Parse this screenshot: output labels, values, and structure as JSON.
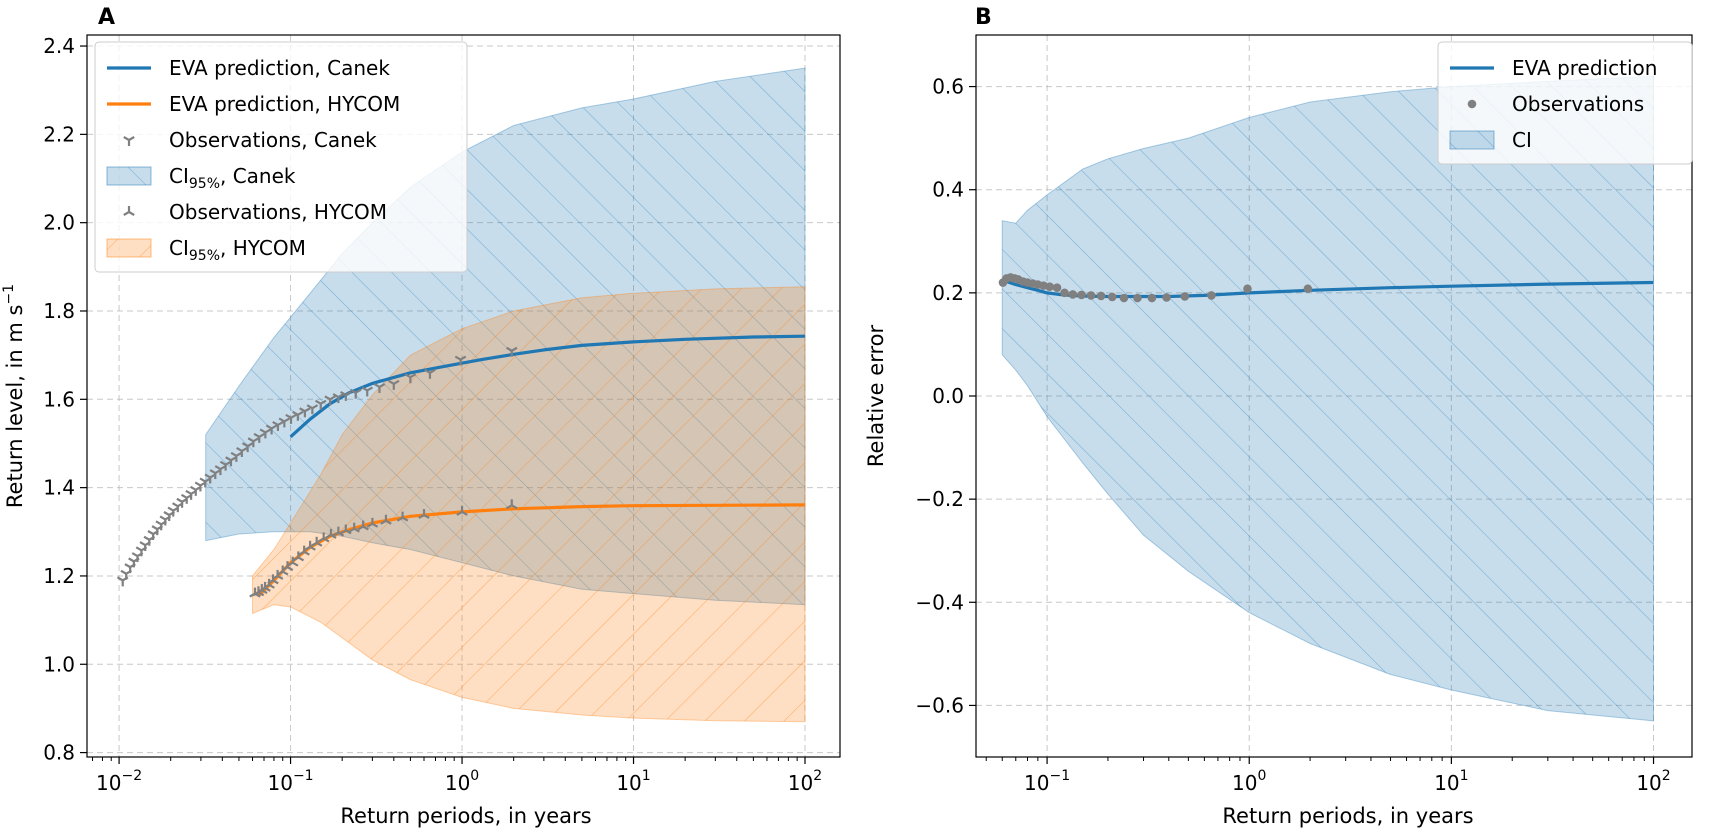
{
  "chart_data": [
    {
      "panel_label": "A",
      "type": "line",
      "xscale": "log",
      "xlim": [
        0.0065,
        160
      ],
      "ylim": [
        0.79,
        2.425
      ],
      "xlabel": "Return periods, in years",
      "ylabel": "Return level, in m s",
      "ylabel_superscript": "−1",
      "grid": true,
      "legend_location": "top-left",
      "x_tick_labels": [
        {
          "value": 0.01,
          "base": "10",
          "exp": "−2"
        },
        {
          "value": 0.1,
          "base": "10",
          "exp": "−1"
        },
        {
          "value": 1,
          "base": "10",
          "exp": "0"
        },
        {
          "value": 10,
          "base": "10",
          "exp": "1"
        },
        {
          "value": 100,
          "base": "10",
          "exp": "2"
        }
      ],
      "y_ticks": [
        0.8,
        1.0,
        1.2,
        1.4,
        1.6,
        1.8,
        2.0,
        2.2,
        2.4
      ],
      "y_tick_labels": [
        "0.8",
        "1.0",
        "1.2",
        "1.4",
        "1.6",
        "1.8",
        "2.0",
        "2.2",
        "2.4"
      ],
      "legend": [
        {
          "label": "EVA prediction, Canek",
          "kind": "line",
          "color": "#1f77b4"
        },
        {
          "label": "EVA prediction, HYCOM",
          "kind": "line",
          "color": "#ff7f0e"
        },
        {
          "label": "Observations, Canek",
          "kind": "marker-tri-down",
          "color": "#808080"
        },
        {
          "label_prefix": "CI",
          "label_sub": "95%",
          "label_suffix": ", Canek",
          "kind": "band",
          "color": "#1f77b4"
        },
        {
          "label": "Observations, HYCOM",
          "kind": "marker-tri-up",
          "color": "#808080"
        },
        {
          "label_prefix": "CI",
          "label_sub": "95%",
          "label_suffix": ", HYCOM",
          "kind": "band",
          "color": "#ff7f0e"
        }
      ],
      "series": [
        {
          "name": "EVA prediction, Canek",
          "color": "#1f77b4",
          "x": [
            0.1,
            0.13,
            0.17,
            0.22,
            0.3,
            0.5,
            0.8,
            1.3,
            2,
            3,
            5,
            10,
            20,
            50,
            100
          ],
          "y": [
            1.515,
            1.555,
            1.59,
            1.615,
            1.636,
            1.66,
            1.675,
            1.69,
            1.702,
            1.712,
            1.722,
            1.73,
            1.736,
            1.741,
            1.743
          ]
        },
        {
          "name": "EVA prediction, HYCOM",
          "color": "#ff7f0e",
          "x": [
            0.065,
            0.08,
            0.1,
            0.13,
            0.17,
            0.22,
            0.3,
            0.5,
            1,
            2,
            5,
            10,
            30,
            100
          ],
          "y": [
            1.155,
            1.19,
            1.23,
            1.265,
            1.29,
            1.305,
            1.32,
            1.335,
            1.345,
            1.352,
            1.357,
            1.359,
            1.36,
            1.361
          ]
        }
      ],
      "bands": [
        {
          "name": "CI95%, Canek",
          "color": "#1f77b4",
          "x": [
            0.032,
            0.05,
            0.08,
            0.13,
            0.2,
            0.3,
            0.5,
            1,
            2,
            5,
            10,
            30,
            100
          ],
          "upper": [
            1.52,
            1.63,
            1.74,
            1.84,
            1.93,
            2.0,
            2.08,
            2.16,
            2.22,
            2.26,
            2.28,
            2.32,
            2.35
          ],
          "lower": [
            1.28,
            1.295,
            1.3,
            1.3,
            1.29,
            1.275,
            1.26,
            1.23,
            1.2,
            1.17,
            1.16,
            1.145,
            1.135
          ]
        },
        {
          "name": "CI95%, HYCOM",
          "color": "#ff7f0e",
          "x": [
            0.06,
            0.08,
            0.1,
            0.15,
            0.2,
            0.3,
            0.5,
            1,
            2,
            5,
            10,
            30,
            100
          ],
          "upper": [
            1.2,
            1.26,
            1.32,
            1.43,
            1.52,
            1.61,
            1.7,
            1.76,
            1.8,
            1.83,
            1.84,
            1.85,
            1.855
          ],
          "lower": [
            1.115,
            1.135,
            1.13,
            1.095,
            1.06,
            1.01,
            0.965,
            0.925,
            0.9,
            0.885,
            0.878,
            0.872,
            0.87
          ]
        }
      ],
      "observations": [
        {
          "name": "Observations, Canek",
          "marker": "tri-down",
          "color": "#808080",
          "x": [
            0.0105,
            0.011,
            0.0116,
            0.0122,
            0.0128,
            0.0135,
            0.0142,
            0.015,
            0.0158,
            0.0167,
            0.0176,
            0.0186,
            0.0196,
            0.0207,
            0.022,
            0.0233,
            0.0248,
            0.0263,
            0.028,
            0.0298,
            0.0318,
            0.034,
            0.0364,
            0.039,
            0.0418,
            0.0449,
            0.0483,
            0.052,
            0.0562,
            0.0607,
            0.0657,
            0.0713,
            0.0775,
            0.0844,
            0.092,
            0.1006,
            0.1103,
            0.1212,
            0.134,
            0.15,
            0.17,
            0.19,
            0.21,
            0.24,
            0.28,
            0.33,
            0.4,
            0.5,
            0.65,
            0.98,
            1.95
          ],
          "y": [
            1.19,
            1.205,
            1.22,
            1.233,
            1.245,
            1.258,
            1.27,
            1.282,
            1.295,
            1.306,
            1.317,
            1.328,
            1.338,
            1.348,
            1.358,
            1.368,
            1.377,
            1.386,
            1.395,
            1.405,
            1.414,
            1.423,
            1.433,
            1.442,
            1.452,
            1.462,
            1.472,
            1.483,
            1.494,
            1.505,
            1.515,
            1.525,
            1.534,
            1.542,
            1.55,
            1.558,
            1.565,
            1.573,
            1.58,
            1.59,
            1.6,
            1.605,
            1.61,
            1.615,
            1.62,
            1.628,
            1.635,
            1.65,
            1.66,
            1.69,
            1.71
          ]
        },
        {
          "name": "Observations, HYCOM",
          "marker": "tri-up",
          "color": "#808080",
          "x": [
            0.062,
            0.065,
            0.068,
            0.071,
            0.075,
            0.079,
            0.084,
            0.09,
            0.096,
            0.103,
            0.111,
            0.12,
            0.13,
            0.142,
            0.156,
            0.172,
            0.19,
            0.21,
            0.235,
            0.265,
            0.3,
            0.36,
            0.45,
            0.6,
            1.0,
            1.95
          ],
          "y": [
            1.16,
            1.163,
            1.168,
            1.173,
            1.18,
            1.19,
            1.2,
            1.21,
            1.22,
            1.23,
            1.242,
            1.255,
            1.266,
            1.275,
            1.285,
            1.293,
            1.298,
            1.303,
            1.307,
            1.312,
            1.318,
            1.325,
            1.332,
            1.338,
            1.345,
            1.36
          ]
        }
      ]
    },
    {
      "panel_label": "B",
      "type": "line",
      "xscale": "log",
      "xlim": [
        0.0445,
        155
      ],
      "ylim": [
        -0.7,
        0.7
      ],
      "xlabel": "Return periods, in years",
      "ylabel": "Relative error",
      "grid": true,
      "legend_location": "top-right",
      "x_tick_labels": [
        {
          "value": 0.1,
          "base": "10",
          "exp": "−1"
        },
        {
          "value": 1,
          "base": "10",
          "exp": "0"
        },
        {
          "value": 10,
          "base": "10",
          "exp": "1"
        },
        {
          "value": 100,
          "base": "10",
          "exp": "2"
        }
      ],
      "y_ticks": [
        -0.6,
        -0.4,
        -0.2,
        0.0,
        0.2,
        0.4,
        0.6
      ],
      "y_tick_labels": [
        "−0.6",
        "−0.4",
        "−0.2",
        "0.0",
        "0.2",
        "0.4",
        "0.6"
      ],
      "legend": [
        {
          "label": "EVA prediction",
          "kind": "line",
          "color": "#1f77b4"
        },
        {
          "label": "Observations",
          "kind": "marker-dot",
          "color": "#808080"
        },
        {
          "label": "CI",
          "kind": "band",
          "color": "#1f77b4"
        }
      ],
      "series": [
        {
          "name": "EVA prediction",
          "color": "#1f77b4",
          "x": [
            0.06,
            0.065,
            0.07,
            0.08,
            0.09,
            0.1,
            0.12,
            0.15,
            0.2,
            0.3,
            0.4,
            0.6,
            1,
            2,
            5,
            10,
            30,
            100
          ],
          "y": [
            0.225,
            0.22,
            0.216,
            0.21,
            0.205,
            0.2,
            0.196,
            0.194,
            0.193,
            0.193,
            0.193,
            0.195,
            0.2,
            0.205,
            0.21,
            0.213,
            0.217,
            0.22
          ]
        }
      ],
      "bands": [
        {
          "name": "CI",
          "color": "#1f77b4",
          "x": [
            0.06,
            0.07,
            0.08,
            0.1,
            0.15,
            0.2,
            0.3,
            0.5,
            1,
            2,
            5,
            10,
            30,
            100
          ],
          "upper": [
            0.34,
            0.335,
            0.36,
            0.39,
            0.44,
            0.46,
            0.48,
            0.5,
            0.54,
            0.57,
            0.59,
            0.6,
            0.61,
            0.62
          ],
          "lower": [
            0.08,
            0.05,
            0.02,
            -0.04,
            -0.13,
            -0.19,
            -0.27,
            -0.34,
            -0.42,
            -0.48,
            -0.54,
            -0.57,
            -0.61,
            -0.63
          ]
        }
      ],
      "observations": [
        {
          "name": "Observations",
          "marker": "dot",
          "color": "#808080",
          "x": [
            0.0605,
            0.063,
            0.066,
            0.069,
            0.072,
            0.076,
            0.08,
            0.085,
            0.09,
            0.096,
            0.103,
            0.112,
            0.122,
            0.134,
            0.148,
            0.165,
            0.185,
            0.21,
            0.24,
            0.28,
            0.33,
            0.39,
            0.48,
            0.65,
            0.98,
            1.95
          ],
          "y": [
            0.22,
            0.228,
            0.23,
            0.228,
            0.226,
            0.222,
            0.22,
            0.218,
            0.216,
            0.214,
            0.212,
            0.21,
            0.2,
            0.197,
            0.196,
            0.195,
            0.194,
            0.192,
            0.19,
            0.19,
            0.19,
            0.191,
            0.193,
            0.195,
            0.208,
            0.208
          ]
        }
      ]
    }
  ]
}
